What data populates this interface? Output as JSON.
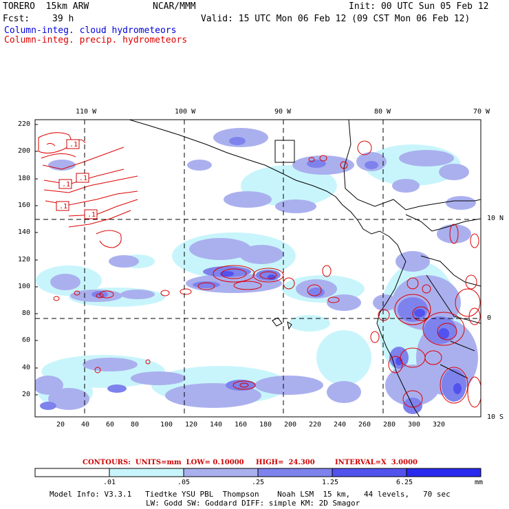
{
  "header": {
    "model_line": "TORERO  15km ARW",
    "org": "NCAR/MMM",
    "init": "Init: 00 UTC Sun 05 Feb 12",
    "fcst_label": "Fcst:",
    "fcst_value": "39 h",
    "valid": "Valid: 15 UTC Mon 06 Feb 12 (09 CST Mon 06 Feb 12)",
    "field_cloud": "Column-integ. cloud hydrometeors",
    "field_precip": "Column-integ. precip. hydrometeors"
  },
  "colors": {
    "cloud": "#0000dd",
    "precip": "#dd0000",
    "scale": [
      "#ffffff",
      "#c8f5fb",
      "#aab0ee",
      "#7e82ec",
      "#5252ee",
      "#2a2aee"
    ]
  },
  "map": {
    "lon_labels": [
      "110 W",
      "100 W",
      "90 W",
      "80 W",
      "70 W"
    ],
    "lat_labels": [
      "10 N",
      "0",
      "10 S"
    ],
    "y_ticks": [
      "220",
      "200",
      "180",
      "160",
      "140",
      "120",
      "100",
      "80",
      "60",
      "40",
      "20"
    ],
    "x_ticks": [
      "20",
      "40",
      "60",
      "80",
      "100",
      "120",
      "140",
      "160",
      "180",
      "200",
      "220",
      "240",
      "260",
      "280",
      "300",
      "320"
    ],
    "box_labels": [
      ".1",
      ".1",
      ".1",
      ".1",
      ".1"
    ]
  },
  "contours": {
    "units": "CONTOURS:  UNITS=mm  LOW= 0.10000",
    "high": "HIGH=  24.300",
    "interval": "INTERVAL=X  3.0000",
    "low_value": 0.1,
    "high_value": 24.3,
    "interval_factor": 3.0
  },
  "colorbar": {
    "labels": [
      ".01",
      ".05",
      ".25",
      "1.25",
      "6.25"
    ],
    "unit": "mm"
  },
  "footer": {
    "line1": "Model Info: V3.3.1   Tiedtke YSU PBL  Thompson    Noah LSM  15 km,   44 levels,   70 sec",
    "line2": "LW: Godd SW: Goddard DIFF: simple KM: 2D Smagor"
  }
}
